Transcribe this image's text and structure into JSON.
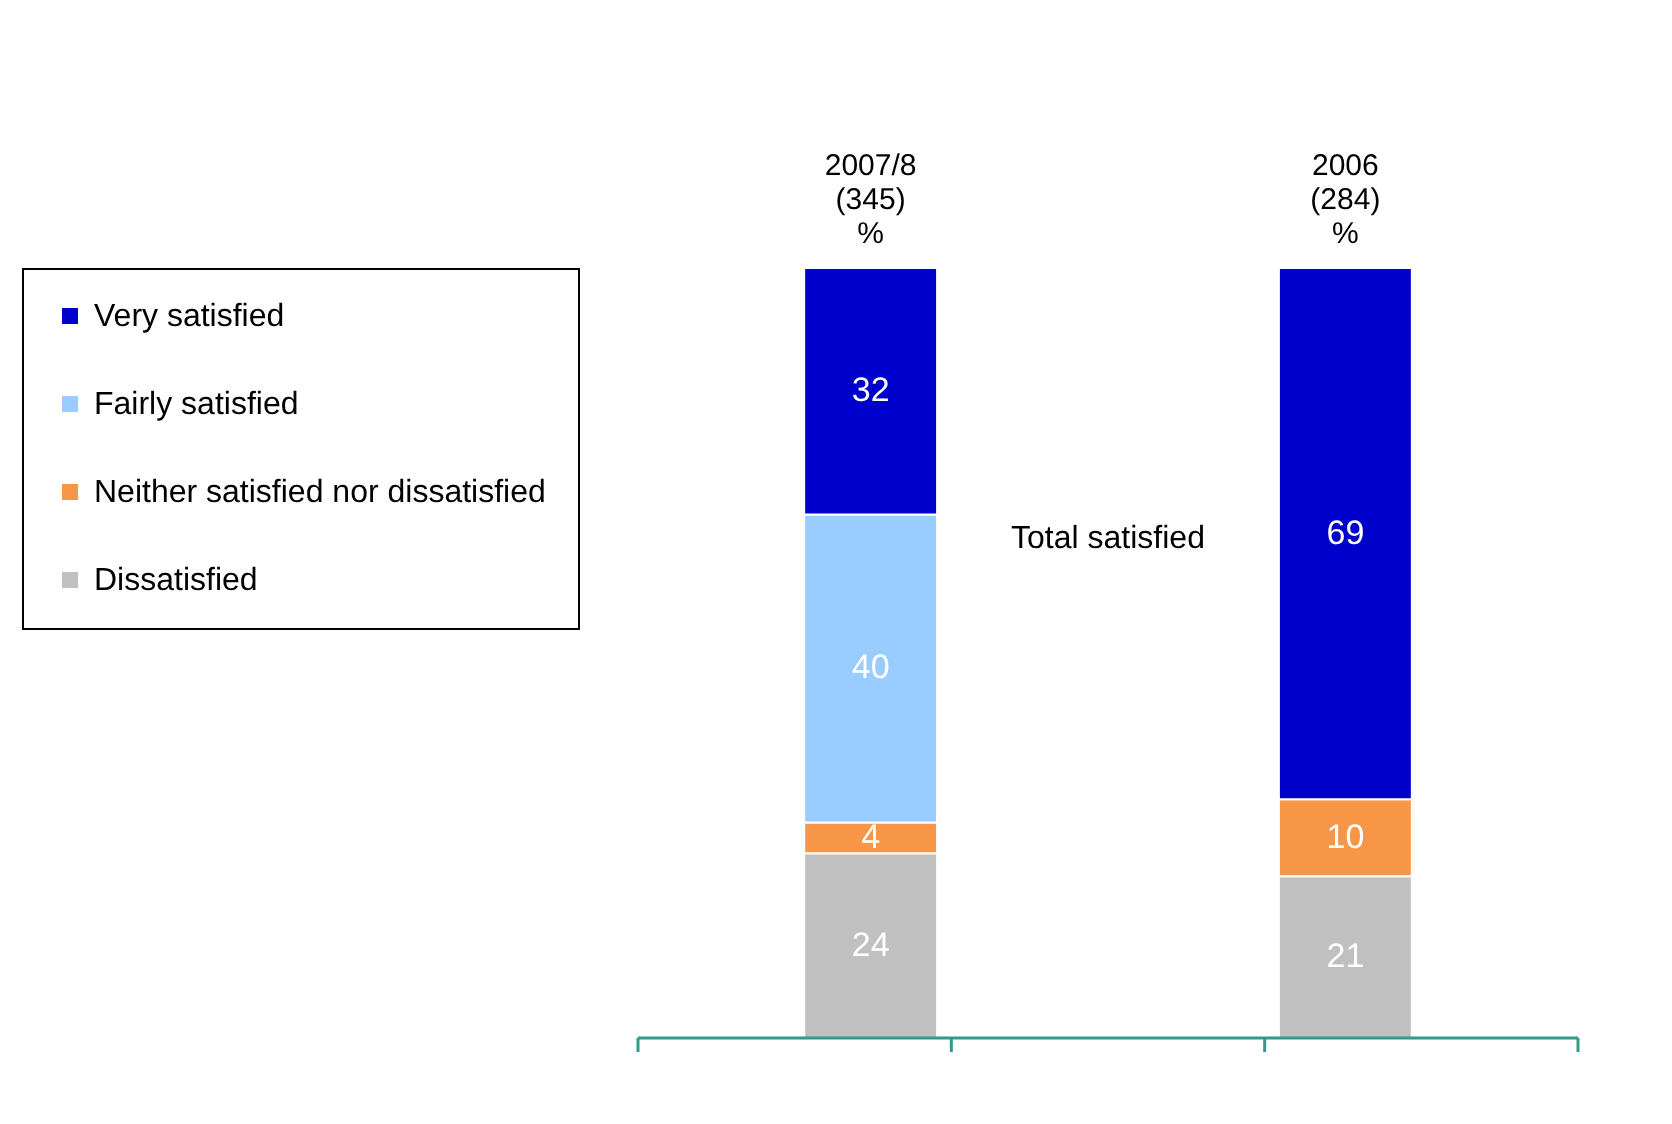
{
  "chart_data": {
    "type": "bar",
    "stacked": true,
    "data_labels": true,
    "legend": "left",
    "categories": [
      "2007/8\n(345)\n%",
      "2006\n(284)\n%"
    ],
    "series": [
      {
        "name": "Dissatisfied",
        "color": "#c0c0c0",
        "values": [
          24,
          21
        ]
      },
      {
        "name": "Neither satisfied nor dissatisfied",
        "color": "#f79646",
        "values": [
          4,
          10
        ]
      },
      {
        "name": "Fairly satisfied",
        "color": "#99ccff",
        "values": [
          40,
          null
        ]
      },
      {
        "name": "Very satisfied",
        "color": "#0000cc",
        "values": [
          32,
          null
        ]
      },
      {
        "color": "#0000cc",
        "values": [
          null,
          69
        ]
      }
    ],
    "annotations": [
      "Total satisfied"
    ]
  }
}
